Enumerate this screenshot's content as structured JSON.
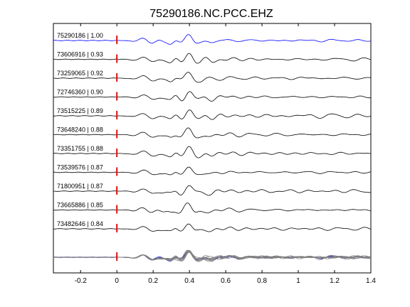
{
  "chart_data": {
    "type": "line",
    "title": "75290186.NC.PCC.EHZ",
    "xlabel": "",
    "ylabel": "",
    "xlim": [
      -0.35,
      1.4
    ],
    "xticks": [
      -0.2,
      0,
      0.2,
      0.4,
      0.6,
      0.8,
      1,
      1.2,
      1.4
    ],
    "xtick_labels": [
      "-0.2",
      "0",
      "0.2",
      "0.4",
      "0.6",
      "0.8",
      "1",
      "1.2",
      "1.4"
    ],
    "pick_time": 0,
    "grid": false,
    "colors": {
      "reference": "#0000ff",
      "trace": "#000000",
      "pick": "#ff0000",
      "overlay": "#808080"
    },
    "series": [
      {
        "name": "75290186 | 1.00",
        "values": [
          0,
          0.1,
          -0.1,
          0.3,
          0.6,
          0.2,
          -0.4,
          0.9,
          -0.7,
          0.4,
          0.8,
          0.5
        ]
      },
      {
        "name": "73606916 | 0.93",
        "values": [
          0,
          0.1,
          -0.1,
          0.3,
          0.5,
          0.2,
          -0.4,
          0.8,
          -0.6,
          0.4,
          0.6,
          0.5
        ]
      },
      {
        "name": "73259065 | 0.92",
        "values": [
          0,
          0.1,
          -0.1,
          0.3,
          0.5,
          0.2,
          -0.4,
          0.8,
          -0.6,
          0.4,
          0.6,
          0.5
        ]
      },
      {
        "name": "72746360 | 0.90",
        "values": [
          0,
          0.1,
          -0.1,
          0.3,
          0.5,
          0.2,
          -0.4,
          0.8,
          -0.6,
          0.4,
          0.6,
          0.5
        ]
      },
      {
        "name": "73515225 | 0.89",
        "values": [
          0,
          0.1,
          -0.1,
          0.3,
          0.5,
          0.2,
          -0.4,
          0.8,
          -0.6,
          0.4,
          0.6,
          0.5
        ]
      },
      {
        "name": "73648240 | 0.88",
        "values": [
          0,
          0.1,
          -0.1,
          0.3,
          0.5,
          0.2,
          -0.4,
          0.8,
          -0.6,
          0.4,
          0.6,
          0.5
        ]
      },
      {
        "name": "73351755 | 0.88",
        "values": [
          0,
          0.1,
          -0.1,
          0.3,
          0.5,
          0.2,
          -0.4,
          0.8,
          -0.6,
          0.4,
          0.6,
          0.5
        ]
      },
      {
        "name": "73539576 | 0.87",
        "values": [
          0,
          0.1,
          -0.1,
          0.3,
          0.5,
          0.2,
          -0.4,
          0.8,
          -0.6,
          0.4,
          0.6,
          0.5
        ]
      },
      {
        "name": "71800951 | 0.87",
        "values": [
          0,
          0.1,
          -0.1,
          0.3,
          0.5,
          0.2,
          -0.4,
          0.8,
          -0.6,
          0.4,
          0.6,
          0.5
        ]
      },
      {
        "name": "73665886 | 0.85",
        "values": [
          0,
          0.1,
          -0.1,
          0.3,
          0.5,
          0.2,
          -0.4,
          0.8,
          -0.6,
          0.4,
          0.6,
          0.5
        ]
      },
      {
        "name": "73482646 | 0.84",
        "values": [
          0,
          0.1,
          -0.1,
          0.3,
          0.5,
          0.2,
          -0.4,
          0.8,
          -0.6,
          0.4,
          0.6,
          0.5
        ]
      }
    ]
  }
}
